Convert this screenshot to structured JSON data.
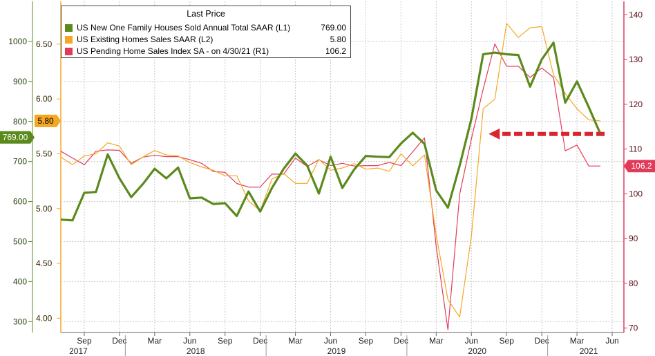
{
  "colors": {
    "new_homes": "#5b8a1c",
    "existing_homes": "#f5a623",
    "pending_homes": "#e23b5a",
    "arrow": "#d8262f",
    "grid": "#c9c9c9"
  },
  "legend": {
    "title": "Last Price",
    "rows": [
      {
        "label": "US New One Family Houses Sold Annual Total SAAR  (L1)",
        "value": "769.00"
      },
      {
        "label": "US Existing Homes Sales SAAR  (L2)",
        "value": "5.80"
      },
      {
        "label": "US Pending Home Sales Index SA -   on 4/30/21  (R1)",
        "value": "106.2"
      }
    ]
  },
  "badges": {
    "new_homes": "769.00",
    "existing_homes": "5.80",
    "pending_homes": "106.2"
  },
  "chart_data": {
    "type": "line",
    "x_ticks": [
      "Sep",
      "Dec",
      "Mar",
      "Jun",
      "Sep",
      "Dec",
      "Mar",
      "Jun",
      "Sep",
      "Dec",
      "Mar",
      "Jun",
      "Sep",
      "Dec",
      "Mar",
      "Jun"
    ],
    "x_tick_months": [
      8,
      11,
      14,
      17,
      20,
      23,
      26,
      29,
      32,
      35,
      38,
      41,
      44,
      47,
      50,
      53
    ],
    "years": [
      {
        "label": "2017",
        "month": 7.5
      },
      {
        "label": "2018",
        "month": 17.5
      },
      {
        "label": "2019",
        "month": 29.5
      },
      {
        "label": "2020",
        "month": 41.5
      },
      {
        "label": "2021",
        "month": 51
      }
    ],
    "year_dividers": [
      11.5,
      23.5,
      35.5,
      47.5
    ],
    "x_range": [
      6,
      54
    ],
    "axes": {
      "L1": {
        "ticks": [
          300,
          400,
          500,
          600,
          700,
          800,
          900,
          1000
        ],
        "range": [
          273,
          1100
        ]
      },
      "L2": {
        "ticks": [
          "4.00",
          "4.50",
          "5.00",
          "5.50",
          "6.00",
          "6.50"
        ],
        "range": [
          3.87,
          6.89
        ]
      },
      "R1": {
        "ticks": [
          70,
          80,
          90,
          100,
          110,
          120,
          130,
          140
        ],
        "range": [
          69,
          143
        ]
      }
    },
    "series": [
      {
        "name": "US New One Family Houses Sold Annual Total SAAR",
        "axis": "L1",
        "x": [
          6,
          7,
          8,
          9,
          10,
          11,
          12,
          13,
          14,
          15,
          16,
          17,
          18,
          19,
          20,
          21,
          22,
          23,
          24,
          25,
          26,
          27,
          28,
          29,
          30,
          31,
          32,
          33,
          34,
          35,
          36,
          37,
          38,
          39,
          40,
          41,
          42,
          43,
          44,
          45,
          46,
          47,
          48,
          49,
          50,
          51,
          52
        ],
        "values": [
          555,
          553,
          622,
          624,
          718,
          658,
          611,
          644,
          682,
          658,
          685,
          608,
          610,
          594,
          596,
          564,
          625,
          575,
          634,
          682,
          720,
          690,
          620,
          712,
          634,
          680,
          714,
          712,
          711,
          745,
          772,
          744,
          628,
          585,
          690,
          807,
          968,
          972,
          968,
          966,
          887,
          955,
          997,
          847,
          900,
          836,
          769
        ]
      },
      {
        "name": "US Existing Homes Sales SAAR",
        "axis": "L2",
        "x": [
          6,
          7,
          8,
          9,
          10,
          11,
          12,
          13,
          14,
          15,
          16,
          17,
          18,
          19,
          20,
          21,
          22,
          23,
          24,
          25,
          26,
          27,
          28,
          29,
          30,
          31,
          32,
          33,
          34,
          35,
          36,
          37,
          38,
          39,
          40,
          41,
          42,
          43,
          44,
          45,
          46,
          47,
          48,
          49,
          50,
          51,
          52
        ],
        "values": [
          5.47,
          5.4,
          5.48,
          5.5,
          5.6,
          5.57,
          5.4,
          5.47,
          5.53,
          5.49,
          5.48,
          5.42,
          5.38,
          5.35,
          5.3,
          5.3,
          5.07,
          4.98,
          5.27,
          5.32,
          5.23,
          5.23,
          5.45,
          5.35,
          5.37,
          5.41,
          5.36,
          5.37,
          5.34,
          5.5,
          5.39,
          5.49,
          4.76,
          4.17,
          4.01,
          4.75,
          5.91,
          6.0,
          6.69,
          6.56,
          6.65,
          6.66,
          6.22,
          6.05,
          5.91,
          5.81,
          5.8
        ]
      },
      {
        "name": "US Pending Home Sales Index SA -   on 4/30/21",
        "axis": "R1",
        "x": [
          6,
          7,
          8,
          9,
          10,
          11,
          12,
          13,
          14,
          15,
          16,
          17,
          18,
          19,
          20,
          21,
          22,
          23,
          24,
          25,
          26,
          27,
          28,
          29,
          30,
          31,
          32,
          33,
          34,
          35,
          36,
          37,
          38,
          39,
          40,
          41,
          42,
          43,
          44,
          45,
          46,
          47,
          48,
          49,
          50,
          51,
          52
        ],
        "values": [
          109.5,
          108.0,
          106.5,
          109.5,
          109.8,
          109.7,
          106.8,
          108.2,
          108.6,
          108.3,
          108.3,
          107.6,
          106.8,
          105.0,
          104.8,
          102.3,
          101.5,
          101.5,
          104.4,
          104.4,
          108.0,
          106.1,
          107.6,
          106.3,
          106.8,
          106.2,
          106.3,
          106.3,
          107.0,
          106.3,
          109.4,
          112.5,
          88.3,
          69.6,
          99.9,
          112.3,
          123.4,
          133.5,
          128.5,
          128.5,
          126.0,
          128.1,
          126.0,
          109.6,
          110.9,
          106.2,
          106.2
        ]
      }
    ],
    "annotation": {
      "type": "arrow",
      "axis": "L1",
      "value": 769,
      "x_from": 52,
      "x_to": 42
    }
  }
}
